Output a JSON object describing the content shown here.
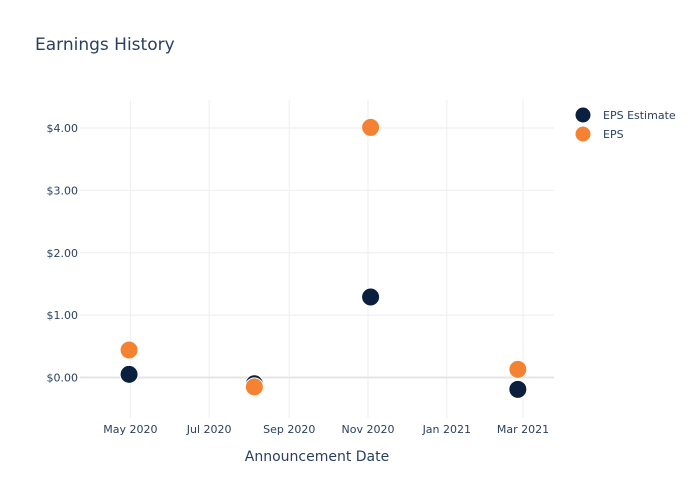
{
  "chart_data": {
    "type": "scatter",
    "title": "Earnings History",
    "xlabel": "Announcement Date",
    "ylabel": "",
    "x_ticks": [
      {
        "date": "2020-05-01",
        "label": "May 2020"
      },
      {
        "date": "2020-07-01",
        "label": "Jul 2020"
      },
      {
        "date": "2020-09-01",
        "label": "Sep 2020"
      },
      {
        "date": "2020-11-01",
        "label": "Nov 2020"
      },
      {
        "date": "2021-01-01",
        "label": "Jan 2021"
      },
      {
        "date": "2021-03-01",
        "label": "Mar 2021"
      }
    ],
    "xlim": [
      "2020-03-23",
      "2021-03-25"
    ],
    "y_ticks": [
      {
        "value": 0,
        "label": "$0.00"
      },
      {
        "value": 1,
        "label": "$1.00"
      },
      {
        "value": 2,
        "label": "$2.00"
      },
      {
        "value": 3,
        "label": "$3.00"
      },
      {
        "value": 4,
        "label": "$4.00"
      }
    ],
    "ylim": [
      -0.65,
      4.45
    ],
    "grid": true,
    "legend_position": "top-right",
    "series": [
      {
        "name": "EPS Estimate",
        "color": "#0b1f3f",
        "points": [
          {
            "x": "2020-04-30",
            "y": 0.05
          },
          {
            "x": "2020-08-05",
            "y": -0.1
          },
          {
            "x": "2020-11-03",
            "y": 1.29
          },
          {
            "x": "2021-02-25",
            "y": -0.19
          }
        ]
      },
      {
        "name": "EPS",
        "color": "#f58233",
        "points": [
          {
            "x": "2020-04-30",
            "y": 0.44
          },
          {
            "x": "2020-08-05",
            "y": -0.15
          },
          {
            "x": "2020-11-03",
            "y": 4.01
          },
          {
            "x": "2021-02-25",
            "y": 0.13
          }
        ]
      }
    ]
  }
}
